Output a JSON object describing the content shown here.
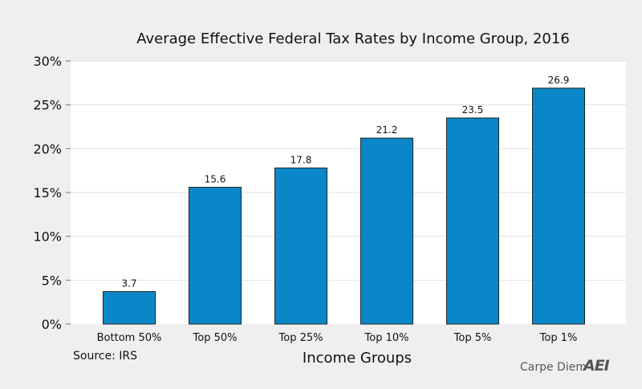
{
  "chart_data": {
    "type": "bar",
    "title": "Average Effective Federal Tax Rates by Income Group, 2016",
    "xlabel": "Income Groups",
    "ylabel": "",
    "categories": [
      "Bottom 50%",
      "Top 50%",
      "Top 25%",
      "Top 10%",
      "Top 5%",
      "Top 1%"
    ],
    "values": [
      3.7,
      15.6,
      17.8,
      21.2,
      23.5,
      26.9
    ],
    "data_labels": [
      "3.7",
      "15.6",
      "17.8",
      "21.2",
      "23.5",
      "26.9"
    ],
    "ylim": [
      0,
      30
    ],
    "yticks": [
      0,
      5,
      10,
      15,
      20,
      25,
      30
    ],
    "ytick_labels": [
      "0%",
      "5%",
      "10%",
      "15%",
      "20%",
      "25%",
      "30%"
    ],
    "grid": true,
    "bar_color": "#0a87c9"
  },
  "source": "Source: IRS",
  "brand": "Carpe Diem",
  "logo": "AEI"
}
